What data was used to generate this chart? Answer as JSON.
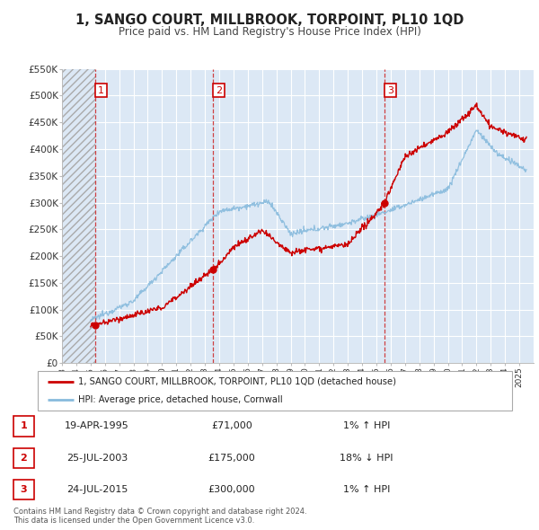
{
  "title": "1, SANGO COURT, MILLBROOK, TORPOINT, PL10 1QD",
  "subtitle": "Price paid vs. HM Land Registry's House Price Index (HPI)",
  "red_line_color": "#cc0000",
  "blue_line_color": "#88bbdd",
  "grid_color": "#ffffff",
  "hatch_color": "#cccccc",
  "sale_dates_decimal": [
    1995.3,
    2003.56,
    2015.56
  ],
  "sale_prices": [
    71000,
    175000,
    300000
  ],
  "sale_labels": [
    "1",
    "2",
    "3"
  ],
  "legend_red": "1, SANGO COURT, MILLBROOK, TORPOINT, PL10 1QD (detached house)",
  "legend_blue": "HPI: Average price, detached house, Cornwall",
  "table_rows": [
    {
      "num": "1",
      "date": "19-APR-1995",
      "price": "£71,000",
      "hpi": "1% ↑ HPI"
    },
    {
      "num": "2",
      "date": "25-JUL-2003",
      "price": "£175,000",
      "hpi": "18% ↓ HPI"
    },
    {
      "num": "3",
      "date": "24-JUL-2015",
      "price": "£300,000",
      "hpi": "1% ↑ HPI"
    }
  ],
  "footer": "Contains HM Land Registry data © Crown copyright and database right 2024.\nThis data is licensed under the Open Government Licence v3.0.",
  "ylim": [
    0,
    550000
  ],
  "yticks": [
    0,
    50000,
    100000,
    150000,
    200000,
    250000,
    300000,
    350000,
    400000,
    450000,
    500000,
    550000
  ],
  "ytick_labels": [
    "£0",
    "£50K",
    "£100K",
    "£150K",
    "£200K",
    "£250K",
    "£300K",
    "£350K",
    "£400K",
    "£450K",
    "£500K",
    "£550K"
  ],
  "xlim": [
    1993.0,
    2026.0
  ],
  "xtick_years": [
    1993,
    1994,
    1995,
    1996,
    1997,
    1998,
    1999,
    2000,
    2001,
    2002,
    2003,
    2004,
    2005,
    2006,
    2007,
    2008,
    2009,
    2010,
    2011,
    2012,
    2013,
    2014,
    2015,
    2016,
    2017,
    2018,
    2019,
    2020,
    2021,
    2022,
    2023,
    2024,
    2025
  ]
}
